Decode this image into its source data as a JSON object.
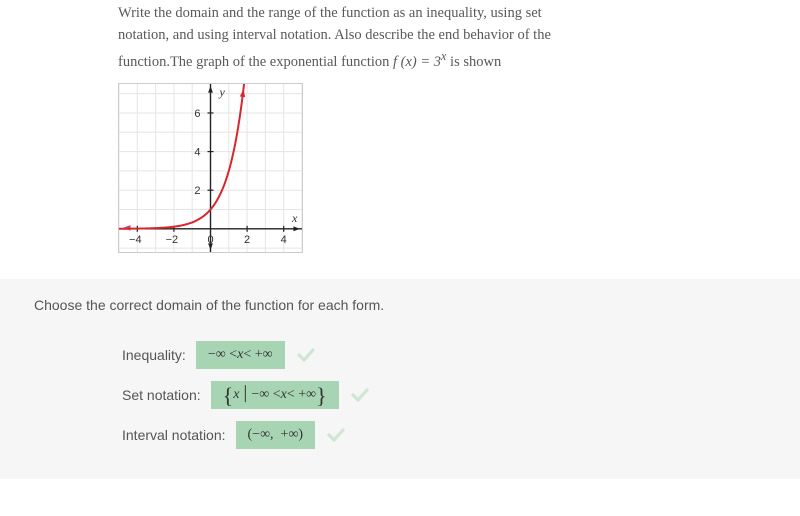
{
  "problem": {
    "line1": "Write the domain and the range of the function as an inequality, using set",
    "line2": "notation, and using interval notation. Also describe the end behavior of the",
    "line3_prefix": "function.The graph of the exponential function ",
    "line3_fn": "f (x) = 3",
    "line3_exp": "x",
    "line3_suffix": " is shown"
  },
  "graph": {
    "x_label": "x",
    "y_label": "y",
    "x_ticks": [
      -4,
      -2,
      0,
      2,
      4
    ],
    "y_ticks": [
      2,
      4,
      6
    ],
    "xlim": [
      -5,
      5
    ],
    "ylim": [
      -1.2,
      7.5
    ],
    "axis_color": "#222222",
    "grid_color": "#e5e5e5",
    "curve_color": "#d6262e",
    "arrow_color_red": "#d6262e",
    "arrow_color_pink": "#d23b7a",
    "tick_font_size": 11
  },
  "answer": {
    "prompt": "Choose the correct domain of the function for each form.",
    "rows": [
      {
        "label": "Inequality:",
        "value_html": "−∞ < <i>x</i> < +∞"
      },
      {
        "label": "Set notation:",
        "value_html": "{<i>x</i>│−∞ < <i>x</i> < +∞}"
      },
      {
        "label": "Interval notation:",
        "value_html": "(−∞,  +∞)"
      }
    ],
    "box_bg": "#a7d4b3",
    "check_color": "#cfe6d5"
  }
}
